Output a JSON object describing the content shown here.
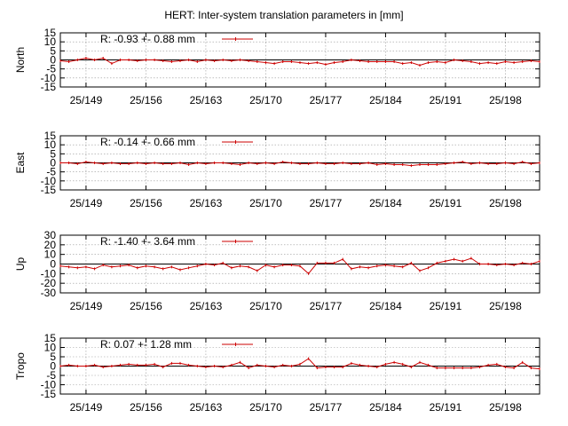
{
  "title": "HERT: Inter-system translation parameters in [mm]",
  "colors": {
    "series": "#cc0000",
    "grid": "#999999",
    "axis": "#000000"
  },
  "chart_data": [
    {
      "type": "line",
      "ylabel": "North",
      "legend": "R:  -0.93 +- 0.88 mm",
      "legend_position": "top-left",
      "grid": true,
      "ylim": [
        -15,
        15
      ],
      "yticks": [
        15,
        10,
        5,
        0,
        -5,
        -10,
        -15
      ],
      "xlim": [
        146,
        202
      ],
      "xticks": [
        149,
        156,
        163,
        170,
        177,
        184,
        191,
        198
      ],
      "xticklabels": [
        "25/149",
        "25/156",
        "25/163",
        "25/170",
        "25/177",
        "25/184",
        "25/191",
        "25/198"
      ],
      "x": [
        146,
        147,
        148,
        149,
        150,
        151,
        152,
        153,
        154,
        155,
        156,
        157,
        158,
        159,
        160,
        161,
        162,
        163,
        164,
        165,
        166,
        167,
        168,
        169,
        170,
        171,
        172,
        173,
        174,
        175,
        176,
        177,
        178,
        179,
        180,
        181,
        182,
        183,
        184,
        185,
        186,
        187,
        188,
        189,
        190,
        191,
        192,
        193,
        194,
        195,
        196,
        197,
        198,
        199,
        200,
        201,
        202
      ],
      "y": [
        -0.5,
        -1,
        0,
        1,
        0,
        1,
        -2,
        0,
        0,
        -0.5,
        0,
        0,
        -0.5,
        -1,
        -0.5,
        0,
        -1,
        0,
        -0.5,
        0,
        -0.5,
        0,
        -0.5,
        -1,
        -1.5,
        -2,
        -1,
        -1,
        -1.5,
        -2,
        -1.5,
        -2.5,
        -1.5,
        -1,
        0,
        -0.5,
        -1,
        -1,
        -1,
        -1,
        -2,
        -1.5,
        -3,
        -1.5,
        -1,
        -1.5,
        0,
        -0.5,
        -1,
        -2,
        -1.5,
        -2,
        -1,
        -1.5,
        -1,
        -0.5,
        -1
      ]
    },
    {
      "type": "line",
      "ylabel": "East",
      "legend": "R:  -0.14 +- 0.66 mm",
      "legend_position": "top-left",
      "grid": true,
      "ylim": [
        -15,
        15
      ],
      "yticks": [
        15,
        10,
        5,
        0,
        -5,
        -10,
        -15
      ],
      "xlim": [
        146,
        202
      ],
      "xticks": [
        149,
        156,
        163,
        170,
        177,
        184,
        191,
        198
      ],
      "xticklabels": [
        "25/149",
        "25/156",
        "25/163",
        "25/170",
        "25/177",
        "25/184",
        "25/191",
        "25/198"
      ],
      "x": [
        146,
        147,
        148,
        149,
        150,
        151,
        152,
        153,
        154,
        155,
        156,
        157,
        158,
        159,
        160,
        161,
        162,
        163,
        164,
        165,
        166,
        167,
        168,
        169,
        170,
        171,
        172,
        173,
        174,
        175,
        176,
        177,
        178,
        179,
        180,
        181,
        182,
        183,
        184,
        185,
        186,
        187,
        188,
        189,
        190,
        191,
        192,
        193,
        194,
        195,
        196,
        197,
        198,
        199,
        200,
        201,
        202
      ],
      "y": [
        0,
        0,
        -0.5,
        0.5,
        0,
        -0.5,
        0,
        -0.5,
        -0.5,
        0,
        -0.5,
        0,
        -0.5,
        -0.5,
        0,
        -1,
        0,
        -0.5,
        0,
        0,
        -0.5,
        -1,
        0,
        -0.5,
        0,
        -0.5,
        0.5,
        0,
        -0.5,
        -0.5,
        0,
        -0.5,
        -0.5,
        0,
        -0.5,
        -0.5,
        0,
        -1,
        -0.5,
        -1,
        -1,
        -1.5,
        -1,
        -1,
        -1,
        -0.5,
        0,
        0.5,
        -0.5,
        0,
        -0.5,
        -0.5,
        0,
        -0.5,
        0.5,
        -0.5,
        0
      ]
    },
    {
      "type": "line",
      "ylabel": "Up",
      "legend": "R:  -1.40 +- 3.64 mm",
      "legend_position": "top-left",
      "grid": true,
      "ylim": [
        -30,
        30
      ],
      "yticks": [
        30,
        20,
        10,
        0,
        -10,
        -20,
        -30
      ],
      "xlim": [
        146,
        202
      ],
      "xticks": [
        149,
        156,
        163,
        170,
        177,
        184,
        191,
        198
      ],
      "xticklabels": [
        "25/149",
        "25/156",
        "25/163",
        "25/170",
        "25/177",
        "25/184",
        "25/191",
        "25/198"
      ],
      "x": [
        146,
        147,
        148,
        149,
        150,
        151,
        152,
        153,
        154,
        155,
        156,
        157,
        158,
        159,
        160,
        161,
        162,
        163,
        164,
        165,
        166,
        167,
        168,
        169,
        170,
        171,
        172,
        173,
        174,
        175,
        176,
        177,
        178,
        179,
        180,
        181,
        182,
        183,
        184,
        185,
        186,
        187,
        188,
        189,
        190,
        191,
        192,
        193,
        194,
        195,
        196,
        197,
        198,
        199,
        200,
        201,
        202
      ],
      "y": [
        -2,
        -3,
        -4,
        -3,
        -5,
        -1,
        -3,
        -2,
        -1,
        -4,
        -2,
        -3,
        -5,
        -3,
        -6,
        -4,
        -2,
        0,
        -1,
        1,
        -4,
        -2,
        -3,
        -7,
        -1,
        -3,
        -1,
        -1,
        -2,
        -10,
        1,
        1,
        1,
        5,
        -5,
        -3,
        -4,
        -2,
        -1,
        -2,
        -3,
        1,
        -7,
        -4,
        1,
        3,
        5,
        3,
        6,
        0,
        0,
        -1,
        0,
        -1,
        1,
        0,
        3
      ]
    },
    {
      "type": "line",
      "ylabel": "Tropo",
      "legend": "R:  0.07 +- 1.28 mm",
      "legend_position": "top-left",
      "grid": true,
      "ylim": [
        -15,
        15
      ],
      "yticks": [
        15,
        10,
        5,
        0,
        -5,
        -10,
        -15
      ],
      "xlim": [
        146,
        202
      ],
      "xticks": [
        149,
        156,
        163,
        170,
        177,
        184,
        191,
        198
      ],
      "xticklabels": [
        "25/149",
        "25/156",
        "25/163",
        "25/170",
        "25/177",
        "25/184",
        "25/191",
        "25/198"
      ],
      "x": [
        146,
        147,
        148,
        149,
        150,
        151,
        152,
        153,
        154,
        155,
        156,
        157,
        158,
        159,
        160,
        161,
        162,
        163,
        164,
        165,
        166,
        167,
        168,
        169,
        170,
        171,
        172,
        173,
        174,
        175,
        176,
        177,
        178,
        179,
        180,
        181,
        182,
        183,
        184,
        185,
        186,
        187,
        188,
        189,
        190,
        191,
        192,
        193,
        194,
        195,
        196,
        197,
        198,
        199,
        200,
        201,
        202
      ],
      "y": [
        0,
        0.5,
        0,
        0,
        0.5,
        -0.5,
        0,
        0.5,
        1,
        0.5,
        0.5,
        1,
        -0.5,
        1.5,
        1.5,
        0.5,
        0,
        -0.5,
        0,
        -0.5,
        0.5,
        2,
        -1,
        0.5,
        0,
        -0.5,
        0.5,
        0,
        1,
        4,
        -1,
        -0.5,
        -0.5,
        -0.5,
        1.5,
        0.5,
        0,
        -0.5,
        1,
        2,
        1,
        -0.5,
        2,
        0.5,
        -1,
        -1,
        -1,
        -1,
        -1,
        -0.5,
        0.5,
        1,
        -0.5,
        -1,
        2,
        -1,
        -1.5
      ]
    }
  ]
}
